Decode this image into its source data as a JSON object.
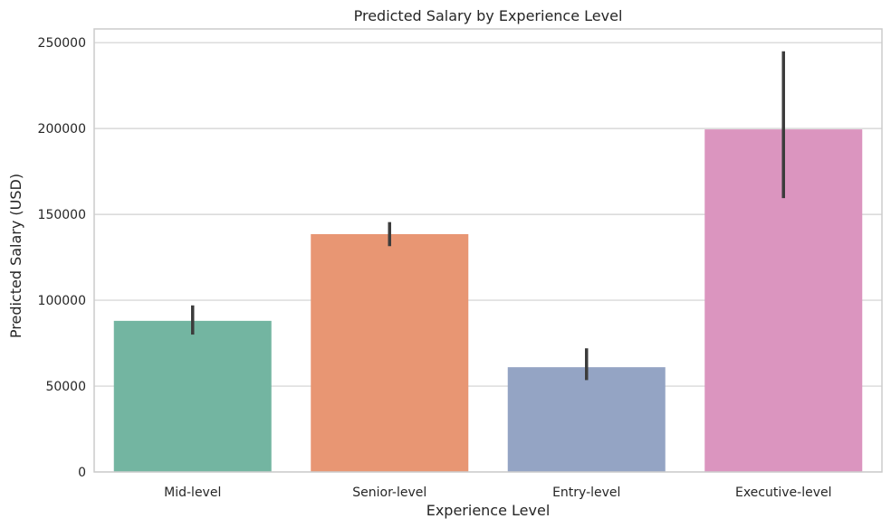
{
  "chart_data": {
    "type": "bar",
    "title": "Predicted Salary by Experience Level",
    "xlabel": "Experience Level",
    "ylabel": "Predicted Salary (USD)",
    "categories": [
      "Mid-level",
      "Senior-level",
      "Entry-level",
      "Executive-level"
    ],
    "values": [
      88000,
      138500,
      61000,
      199500
    ],
    "error_low": [
      80000,
      131500,
      53500,
      159500
    ],
    "error_high": [
      97000,
      145500,
      72000,
      245000
    ],
    "ylim": [
      0,
      258000
    ],
    "yticks": [
      0,
      50000,
      100000,
      150000,
      200000,
      250000
    ],
    "ytick_labels": [
      "0",
      "50000",
      "100000",
      "150000",
      "200000",
      "250000"
    ],
    "grid": "horizontal",
    "colors": [
      "#73b5a1",
      "#e89673",
      "#94a4c4",
      "#db95bf"
    ],
    "error_color": "#3c3c3c"
  }
}
